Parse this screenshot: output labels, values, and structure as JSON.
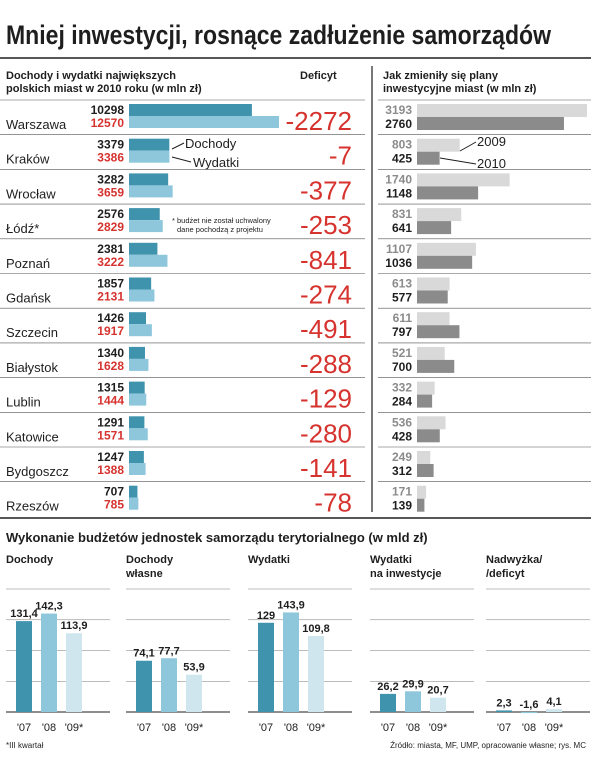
{
  "title": "Mniej inwestycji, rosnące zadłużenie samorządów",
  "colors": {
    "income": "#3f93ad",
    "expense": "#8ec6dc",
    "plan2009": "#d9d9d9",
    "plan2010": "#8b8b8b",
    "deficit_text": "#d6332f",
    "budget_07": "#3f93ad",
    "budget_08": "#8ec6dc",
    "budget_09": "#cfe6ef"
  },
  "chart_data": [
    {
      "type": "bar",
      "title": "Dochody i wydatki największych polskich miast w 2010 roku (w mln zł)",
      "title_lines": [
        "Dochody i wydatki największych",
        "polskich miast w 2010 roku (w mln zł)"
      ],
      "deficit_header": "Deficyt",
      "categories": [
        "Warszawa",
        "Kraków",
        "Wrocław",
        "Łódź*",
        "Poznań",
        "Gdańsk",
        "Szczecin",
        "Białystok",
        "Lublin",
        "Katowice",
        "Bydgoszcz",
        "Rzeszów"
      ],
      "series": [
        {
          "name": "Dochody",
          "values": [
            10298,
            3379,
            3282,
            2576,
            2381,
            1857,
            1426,
            1340,
            1315,
            1291,
            1247,
            707
          ]
        },
        {
          "name": "Wydatki",
          "values": [
            12570,
            3386,
            3659,
            2829,
            3222,
            2131,
            1917,
            1628,
            1444,
            1571,
            1388,
            785
          ]
        }
      ],
      "deficit": [
        "-2272",
        "-7",
        "-377",
        "-253",
        "-841",
        "-274",
        "-491",
        "-288",
        "-129",
        "-280",
        "-141",
        "-78"
      ],
      "annotation": "* budżet nie został uchwalony",
      "annotation2": "dane pochodzą z projektu"
    },
    {
      "type": "bar",
      "title": "Jak zmieniły się plany inwestycyjne miast (w mln zł)",
      "title_lines": [
        "Jak zmieniły się plany",
        "inwestycyjne miast (w mln zł)"
      ],
      "series": [
        {
          "name": "2009",
          "values": [
            3193,
            803,
            1740,
            831,
            1107,
            613,
            611,
            521,
            332,
            536,
            249,
            171
          ]
        },
        {
          "name": "2010",
          "values": [
            2760,
            425,
            1148,
            641,
            1036,
            577,
            797,
            700,
            284,
            428,
            312,
            139
          ]
        }
      ]
    },
    {
      "type": "bar",
      "title": "Wykonanie budżetów jednostek samorządu terytorialnego (w mld zł)",
      "categories": [
        "'07",
        "'08",
        "'09*"
      ],
      "panels": [
        {
          "title_lines": [
            "Dochody"
          ],
          "values": [
            131.4,
            142.3,
            113.9
          ],
          "labels": [
            "131,4",
            "142,3",
            "113,9"
          ]
        },
        {
          "title_lines": [
            "Dochody",
            "własne"
          ],
          "values": [
            74.1,
            77.7,
            53.9
          ],
          "labels": [
            "74,1",
            "77,7",
            "53,9"
          ]
        },
        {
          "title_lines": [
            "Wydatki"
          ],
          "values": [
            129,
            143.9,
            109.8
          ],
          "labels": [
            "129",
            "143,9",
            "109,8"
          ]
        },
        {
          "title_lines": [
            "Wydatki",
            "na inwestycje"
          ],
          "values": [
            26.2,
            29.9,
            20.7
          ],
          "labels": [
            "26,2",
            "29,9",
            "20,7"
          ]
        },
        {
          "title_lines": [
            "Nadwyżka/",
            "/deficyt"
          ],
          "values": [
            2.3,
            -1.6,
            4.1
          ],
          "labels": [
            "2,3",
            "-1,6",
            "4,1"
          ]
        }
      ]
    }
  ],
  "footnote": "*III kwartał",
  "source": "Źródło: miasta, MF, UMP, opracowanie własne;  rys. MC"
}
